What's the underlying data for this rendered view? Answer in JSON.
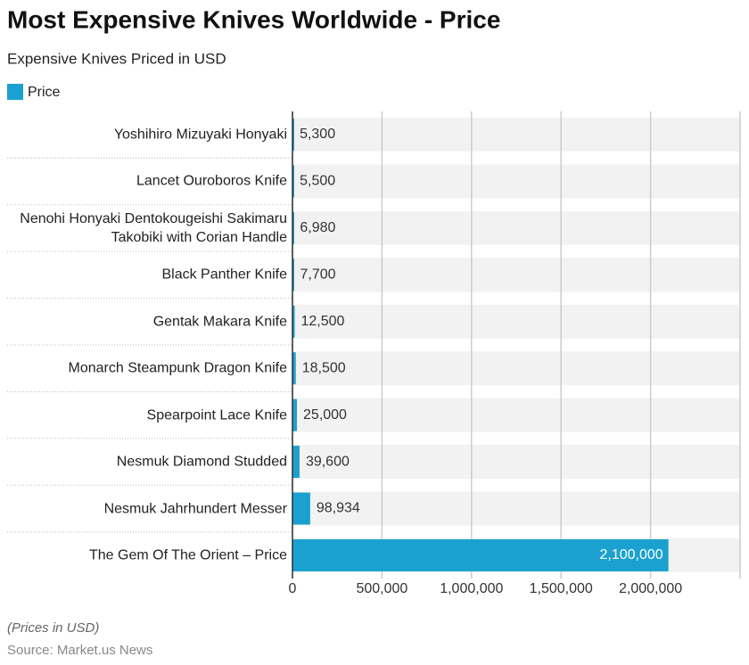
{
  "chart_data": {
    "type": "bar",
    "orientation": "horizontal",
    "title": "Most Expensive Knives Worldwide - Price",
    "subtitle": "Expensive Knives Priced in USD",
    "categories": [
      "Yoshihiro Mizuyaki Honyaki",
      "Lancet Ouroboros Knife",
      "Nenohi Honyaki Dentokougeishi Sakimaru Takobiki with Corian Handle",
      "Black Panther Knife",
      "Gentak Makara Knife",
      "Monarch Steampunk Dragon Knife",
      "Spearpoint Lace Knife",
      "Nesmuk Diamond Studded",
      "Nesmuk Jahrhundert Messer",
      "The Gem Of The Orient – Price"
    ],
    "series": [
      {
        "name": "Price",
        "color": "#1ba1d0",
        "values": [
          5300,
          5500,
          6980,
          7700,
          12500,
          18500,
          25000,
          39600,
          98934,
          2100000
        ],
        "value_labels": [
          "5,300",
          "5,500",
          "6,980",
          "7,700",
          "12,500",
          "18,500",
          "25,000",
          "39,600",
          "98,934",
          "2,100,000"
        ]
      }
    ],
    "xlim": [
      0,
      2500000
    ],
    "xticks": [
      0,
      {
        "value": 500000,
        "label": "500,000"
      },
      {
        "value": 1000000,
        "label": "1,000,000"
      },
      {
        "value": 1500000,
        "label": "1,500,000"
      },
      {
        "value": 2000000,
        "label": "2,000,000"
      }
    ],
    "grid": true,
    "note": "(Prices in USD)",
    "source": "Source: Market.us News"
  }
}
